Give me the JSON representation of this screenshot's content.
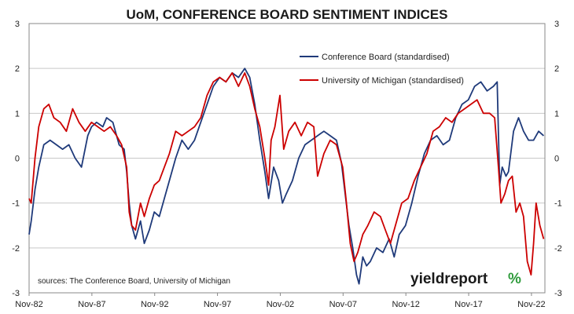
{
  "chart_data": {
    "type": "line",
    "title": "UoM, CONFERENCE BOARD SENTIMENT INDICES",
    "xlabel": "",
    "ylabel": "",
    "ylim": [
      -3,
      3
    ],
    "yticks": [
      3,
      2,
      1,
      0,
      -1,
      -2,
      -3
    ],
    "xtick_labels": [
      "Nov-82",
      "Nov-87",
      "Nov-92",
      "Nov-97",
      "Nov-02",
      "Nov-07",
      "Nov-12",
      "Nov-17",
      "Nov-22"
    ],
    "xtick_years": [
      1982.83,
      1987.83,
      1992.83,
      1997.83,
      2002.83,
      2007.83,
      2012.83,
      2017.83,
      2022.83
    ],
    "xlim": [
      1982.83,
      2023.9
    ],
    "grid": true,
    "legend_position": "top-right",
    "annotation_source": "sources: The Conference Board, University of Michigan",
    "series": [
      {
        "name": "Conference Board (standardised)",
        "color": "#1f3a7a",
        "x": [
          1982.83,
          1983.0,
          1983.3,
          1983.6,
          1984.0,
          1984.5,
          1985.0,
          1985.5,
          1986.0,
          1986.5,
          1987.0,
          1987.5,
          1987.8,
          1988.2,
          1988.7,
          1989.0,
          1989.5,
          1990.0,
          1990.4,
          1990.6,
          1990.8,
          1991.0,
          1991.3,
          1991.7,
          1992.0,
          1992.4,
          1992.8,
          1993.2,
          1993.6,
          1994.0,
          1994.5,
          1995.0,
          1995.5,
          1996.0,
          1996.5,
          1997.0,
          1997.5,
          1998.0,
          1998.5,
          1999.0,
          1999.5,
          2000.0,
          2000.4,
          2000.8,
          2001.2,
          2001.6,
          2001.9,
          2002.3,
          2002.7,
          2003.0,
          2003.3,
          2003.8,
          2004.3,
          2004.8,
          2005.3,
          2005.8,
          2006.3,
          2006.8,
          2007.3,
          2007.7,
          2008.0,
          2008.3,
          2008.6,
          2008.9,
          2009.1,
          2009.4,
          2009.7,
          2010.0,
          2010.5,
          2011.0,
          2011.5,
          2011.9,
          2012.3,
          2012.8,
          2013.3,
          2013.8,
          2014.3,
          2014.8,
          2015.3,
          2015.8,
          2016.3,
          2016.8,
          2017.3,
          2017.8,
          2018.3,
          2018.8,
          2019.3,
          2019.8,
          2020.1,
          2020.3,
          2020.5,
          2020.8,
          2021.0,
          2021.4,
          2021.8,
          2022.2,
          2022.6,
          2023.0,
          2023.4,
          2023.8
        ],
        "values": [
          -1.7,
          -1.4,
          -0.7,
          -0.2,
          0.3,
          0.4,
          0.3,
          0.2,
          0.3,
          0.0,
          -0.2,
          0.5,
          0.7,
          0.8,
          0.7,
          0.9,
          0.8,
          0.3,
          0.2,
          -0.3,
          -1.0,
          -1.5,
          -1.8,
          -1.4,
          -1.9,
          -1.6,
          -1.2,
          -1.3,
          -0.9,
          -0.5,
          0.0,
          0.4,
          0.2,
          0.4,
          0.8,
          1.2,
          1.6,
          1.8,
          1.7,
          1.9,
          1.8,
          2.0,
          1.8,
          1.2,
          0.4,
          -0.3,
          -0.9,
          -0.2,
          -0.5,
          -1.0,
          -0.8,
          -0.5,
          0.0,
          0.3,
          0.4,
          0.5,
          0.6,
          0.5,
          0.4,
          -0.1,
          -0.8,
          -1.5,
          -2.0,
          -2.6,
          -2.8,
          -2.2,
          -2.4,
          -2.3,
          -2.0,
          -2.1,
          -1.8,
          -2.2,
          -1.7,
          -1.5,
          -1.0,
          -0.4,
          0.1,
          0.4,
          0.5,
          0.3,
          0.4,
          0.9,
          1.2,
          1.3,
          1.6,
          1.7,
          1.5,
          1.6,
          1.7,
          -0.6,
          -0.2,
          -0.4,
          -0.3,
          0.6,
          0.9,
          0.6,
          0.4,
          0.4,
          0.6,
          0.5
        ]
      },
      {
        "name": "University of Michigan (standardised)",
        "color": "#cc0000",
        "x": [
          1982.83,
          1983.0,
          1983.3,
          1983.6,
          1984.0,
          1984.4,
          1984.8,
          1985.3,
          1985.8,
          1986.3,
          1986.8,
          1987.3,
          1987.8,
          1988.3,
          1988.8,
          1989.3,
          1989.8,
          1990.2,
          1990.6,
          1990.8,
          1991.0,
          1991.3,
          1991.7,
          1992.0,
          1992.4,
          1992.8,
          1993.2,
          1993.6,
          1994.0,
          1994.5,
          1995.0,
          1995.5,
          1996.0,
          1996.5,
          1997.0,
          1997.5,
          1998.0,
          1998.5,
          1999.0,
          1999.5,
          2000.0,
          2000.4,
          2000.8,
          2001.2,
          2001.6,
          2001.9,
          2002.1,
          2002.4,
          2002.8,
          2003.1,
          2003.5,
          2004.0,
          2004.5,
          2005.0,
          2005.5,
          2005.8,
          2006.3,
          2006.8,
          2007.3,
          2007.8,
          2008.1,
          2008.4,
          2008.7,
          2009.0,
          2009.4,
          2009.8,
          2010.3,
          2010.8,
          2011.2,
          2011.6,
          2012.0,
          2012.5,
          2013.0,
          2013.5,
          2014.0,
          2014.5,
          2015.0,
          2015.5,
          2016.0,
          2016.5,
          2017.0,
          2017.5,
          2018.0,
          2018.5,
          2019.0,
          2019.5,
          2019.9,
          2020.2,
          2020.4,
          2020.7,
          2021.0,
          2021.3,
          2021.6,
          2021.9,
          2022.2,
          2022.5,
          2022.8,
          2023.0,
          2023.2,
          2023.5,
          2023.8
        ],
        "values": [
          -0.9,
          -1.0,
          0.0,
          0.7,
          1.1,
          1.2,
          0.9,
          0.8,
          0.6,
          1.1,
          0.8,
          0.6,
          0.8,
          0.7,
          0.6,
          0.7,
          0.5,
          0.3,
          -0.2,
          -1.2,
          -1.5,
          -1.6,
          -1.0,
          -1.3,
          -0.9,
          -0.6,
          -0.5,
          -0.2,
          0.1,
          0.6,
          0.5,
          0.6,
          0.7,
          0.9,
          1.4,
          1.7,
          1.8,
          1.7,
          1.9,
          1.6,
          1.9,
          1.6,
          1.1,
          0.7,
          0.0,
          -0.6,
          0.4,
          0.7,
          1.4,
          0.2,
          0.6,
          0.8,
          0.5,
          0.8,
          0.7,
          -0.4,
          0.1,
          0.4,
          0.3,
          -0.2,
          -1.0,
          -1.9,
          -2.3,
          -2.1,
          -1.7,
          -1.5,
          -1.2,
          -1.3,
          -1.6,
          -1.9,
          -1.5,
          -1.0,
          -0.9,
          -0.5,
          -0.2,
          0.1,
          0.6,
          0.7,
          0.9,
          0.8,
          1.0,
          1.1,
          1.2,
          1.3,
          1.0,
          1.0,
          0.9,
          -0.2,
          -1.0,
          -0.8,
          -0.5,
          -0.4,
          -1.2,
          -1.0,
          -1.3,
          -2.3,
          -2.6,
          -1.9,
          -1.0,
          -1.5,
          -1.8
        ]
      }
    ]
  },
  "branding": {
    "word": "yieldreport",
    "symbol": "%"
  }
}
